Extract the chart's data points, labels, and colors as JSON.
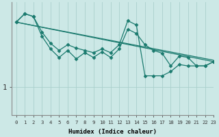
{
  "xlabel": "Humidex (Indice chaleur)",
  "xlim": [
    -0.5,
    23
  ],
  "ylim": [
    0,
    4.0
  ],
  "ytick_val": 1.0,
  "ytick_label": "1",
  "xticks": [
    0,
    1,
    2,
    3,
    4,
    5,
    6,
    7,
    8,
    9,
    10,
    11,
    12,
    13,
    14,
    15,
    16,
    17,
    18,
    19,
    20,
    21,
    22,
    23
  ],
  "bg_color": "#cce8e6",
  "line_color": "#1a7a6e",
  "vgrid_color": "#aad0cc",
  "hgrid_color": "#aad0cc",
  "series1_x": [
    0,
    1,
    2,
    3,
    4,
    5,
    6,
    7,
    8,
    9,
    10,
    11,
    12,
    13,
    14,
    15,
    16,
    17,
    18,
    19,
    20,
    21,
    22,
    23
  ],
  "series1_y": [
    3.3,
    3.6,
    3.5,
    2.8,
    2.35,
    2.05,
    2.3,
    2.0,
    2.22,
    2.05,
    2.25,
    2.05,
    2.35,
    3.05,
    2.9,
    2.5,
    2.3,
    2.2,
    1.75,
    2.1,
    2.05,
    1.75,
    1.75,
    1.9
  ],
  "series2_x": [
    0,
    1,
    2,
    3,
    4,
    5,
    6,
    7,
    8,
    9,
    10,
    11,
    12,
    13,
    14,
    15,
    16,
    17,
    18,
    19,
    20,
    21,
    22,
    23
  ],
  "series2_y": [
    3.3,
    3.6,
    3.5,
    2.95,
    2.55,
    2.3,
    2.5,
    2.38,
    2.3,
    2.22,
    2.35,
    2.22,
    2.5,
    3.35,
    3.2,
    1.4,
    1.4,
    1.4,
    1.55,
    1.8,
    1.75,
    1.75,
    1.75,
    1.9
  ],
  "line3_x": [
    0,
    23
  ],
  "line3_y": [
    3.3,
    1.9
  ],
  "line4_x": [
    0,
    23
  ],
  "line4_y": [
    3.3,
    1.95
  ]
}
